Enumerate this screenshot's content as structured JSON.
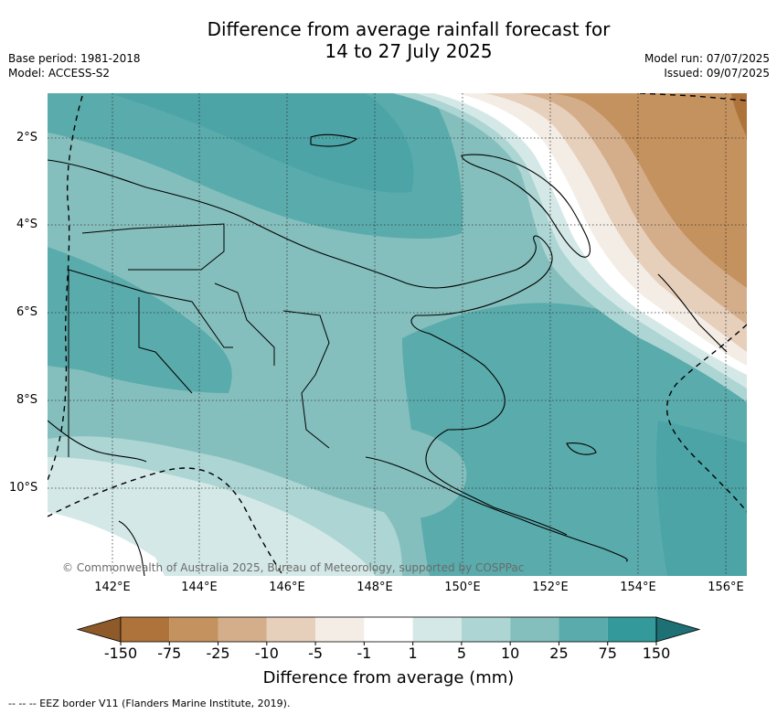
{
  "title": {
    "line1": "Difference from average rainfall forecast for",
    "line2": "14 to 27 July 2025"
  },
  "meta_left": {
    "base_period": "Base period: 1981-2018",
    "model": "Model: ACCESS-S2"
  },
  "meta_right": {
    "model_run": "Model run: 07/07/2025",
    "issued": "Issued: 09/07/2025"
  },
  "map": {
    "lat_labels": [
      "2°S",
      "4°S",
      "6°S",
      "8°S",
      "10°S"
    ],
    "lon_labels": [
      "142°E",
      "144°E",
      "146°E",
      "148°E",
      "150°E",
      "152°E",
      "154°E",
      "156°E"
    ],
    "copyright": "© Commonwealth of Australia 2025, Bureau of Meteorology, supported by COSPPac"
  },
  "colorbar": {
    "title": "Difference from average (mm)",
    "tick_labels": [
      "-150",
      "-75",
      "-25",
      "-10",
      "-5",
      "-1",
      "1",
      "5",
      "10",
      "25",
      "75",
      "150"
    ],
    "colors": [
      "#8e5a2a",
      "#ad733a",
      "#c4925e",
      "#d4ae8a",
      "#e6d0bc",
      "#f3ede6",
      "#ffffff",
      "#d4e9e7",
      "#acd5d3",
      "#84bfbd",
      "#5aabac",
      "#33999a",
      "#1d7073"
    ]
  },
  "footer": "--  --  -- EEZ border V11 (Flanders Marine Institute, 2019)."
}
